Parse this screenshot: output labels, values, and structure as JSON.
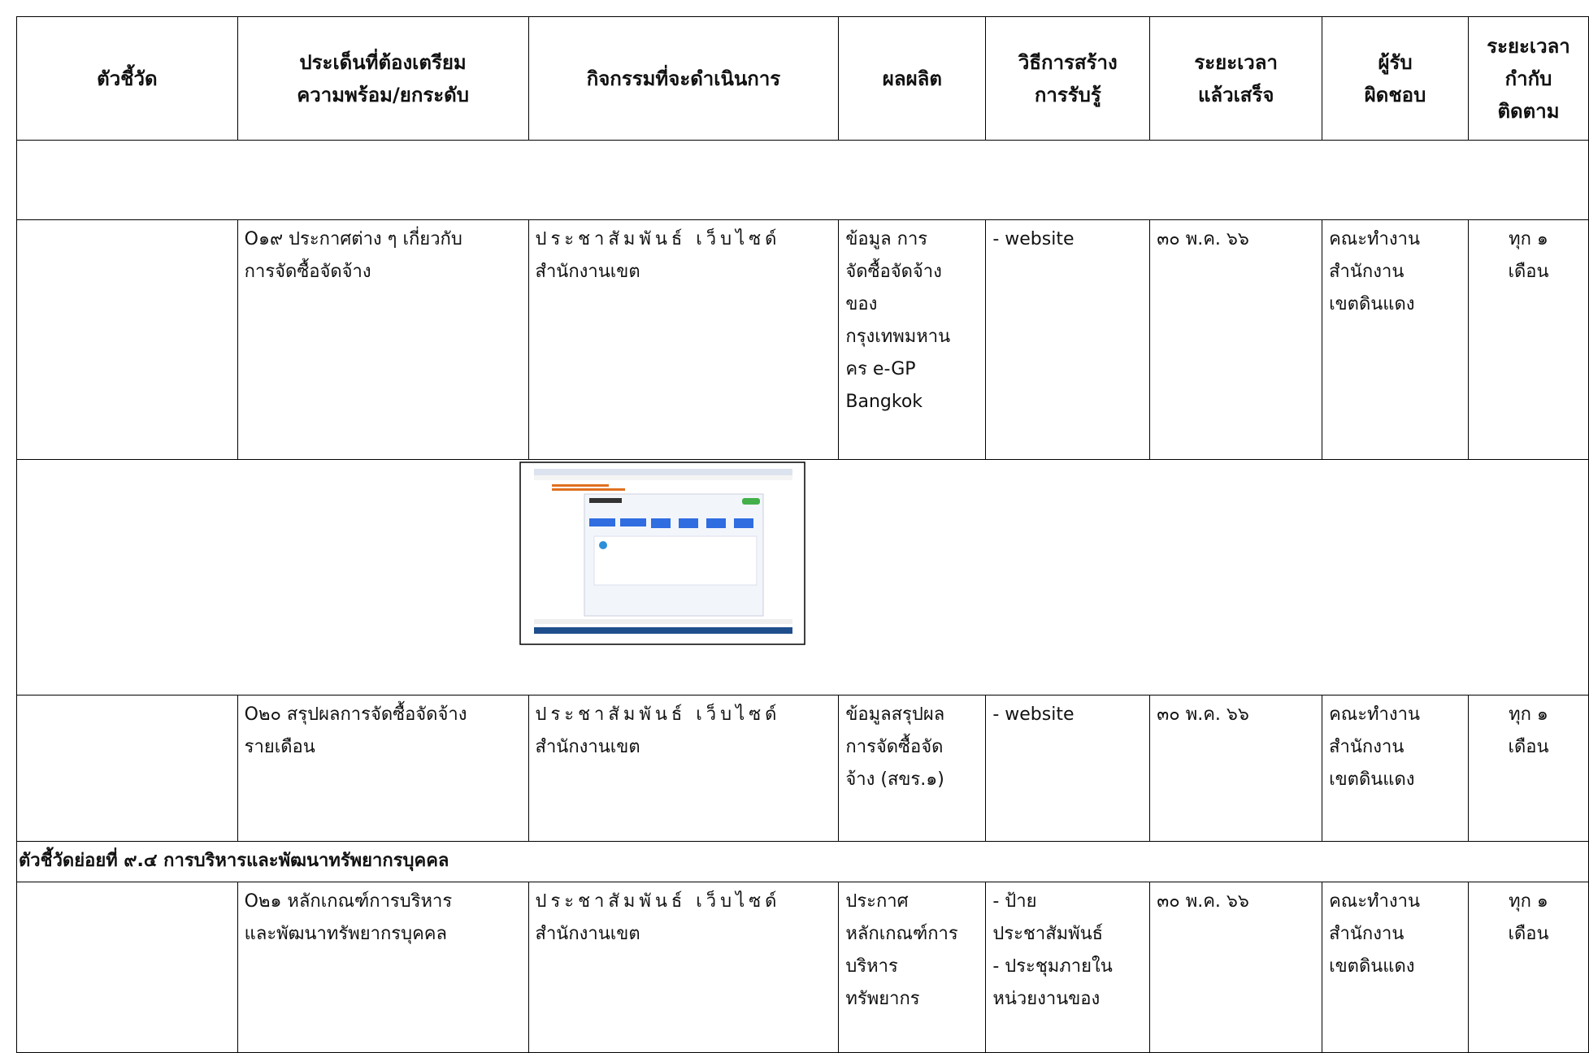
{
  "table": {
    "header": [
      [
        "ตัวชี้วัด"
      ],
      [
        "ประเด็นที่ต้องเตรียม",
        "ความพร้อม/ยกระดับ"
      ],
      [
        "กิจกรรมที่จะดำเนินการ"
      ],
      [
        "ผลผลิต"
      ],
      [
        "วิธีการสร้าง",
        "การรับรู้"
      ],
      [
        "ระยะเวลา",
        "แล้วเสร็จ"
      ],
      [
        "ผู้รับ",
        "ผิดชอบ"
      ],
      [
        "ระยะเวลา",
        "กำกับ",
        "ติดตาม"
      ]
    ],
    "rows": [
      {
        "kind": "blank"
      },
      {
        "kind": "data",
        "cells": [
          [],
          [
            "O๑๙ ประกาศต่าง ๆ เกี่ยวกับ",
            "การจัดซื้อจัดจ้าง"
          ],
          [
            "ประชาสัมพันธ์ เว็บไซด์",
            "สำนักงานเขต"
          ],
          [
            "ข้อมูล การ",
            "จัดซื้อจัดจ้าง",
            "ของ",
            "กรุงเทพมหาน",
            "คร e-GP",
            "Bangkok"
          ],
          [
            "- website"
          ],
          [
            "๓๐ พ.ค. ๖๖"
          ],
          [
            "คณะทำงาน",
            "สำนักงาน",
            "เขตดินแดง"
          ],
          [
            "ทุก ๑",
            "เดือน"
          ]
        ]
      },
      {
        "kind": "image"
      },
      {
        "kind": "data",
        "cells": [
          [],
          [
            "O๒๐ สรุปผลการจัดซื้อจัดจ้าง",
            "รายเดือน"
          ],
          [
            "ประชาสัมพันธ์ เว็บไซด์",
            "สำนักงานเขต"
          ],
          [
            "ข้อมูลสรุปผล",
            "การจัดซื้อจัด",
            "จ้าง (สขร.๑)"
          ],
          [
            "- website"
          ],
          [
            "๓๐ พ.ค. ๖๖"
          ],
          [
            "คณะทำงาน",
            "สำนักงาน",
            "เขตดินแดง"
          ],
          [
            "ทุก ๑",
            "เดือน"
          ]
        ]
      },
      {
        "kind": "section",
        "text": "ตัวชี้วัดย่อยที่ ๙.๔ การบริหารและพัฒนาทรัพยากรบุคคล"
      },
      {
        "kind": "data",
        "cells": [
          [],
          [
            "O๒๑ หลักเกณฑ์การบริหาร",
            "และพัฒนาทรัพยากรบุคคล"
          ],
          [
            "ประชาสัมพันธ์ เว็บไซด์",
            "สำนักงานเขต"
          ],
          [
            "ประกาศ",
            "หลักเกณฑ์การ",
            "บริหาร",
            "ทรัพยากร"
          ],
          [
            "- ป้าย",
            "ประชาสัมพันธ์",
            "- ประชุมภายใน",
            "หน่วยงานของ"
          ],
          [
            "๓๐ พ.ค. ๖๖"
          ],
          [
            "คณะทำงาน",
            "สำนักงาน",
            "เขตดินแดง"
          ],
          [
            "ทุก ๑",
            "เดือน"
          ]
        ]
      }
    ]
  }
}
